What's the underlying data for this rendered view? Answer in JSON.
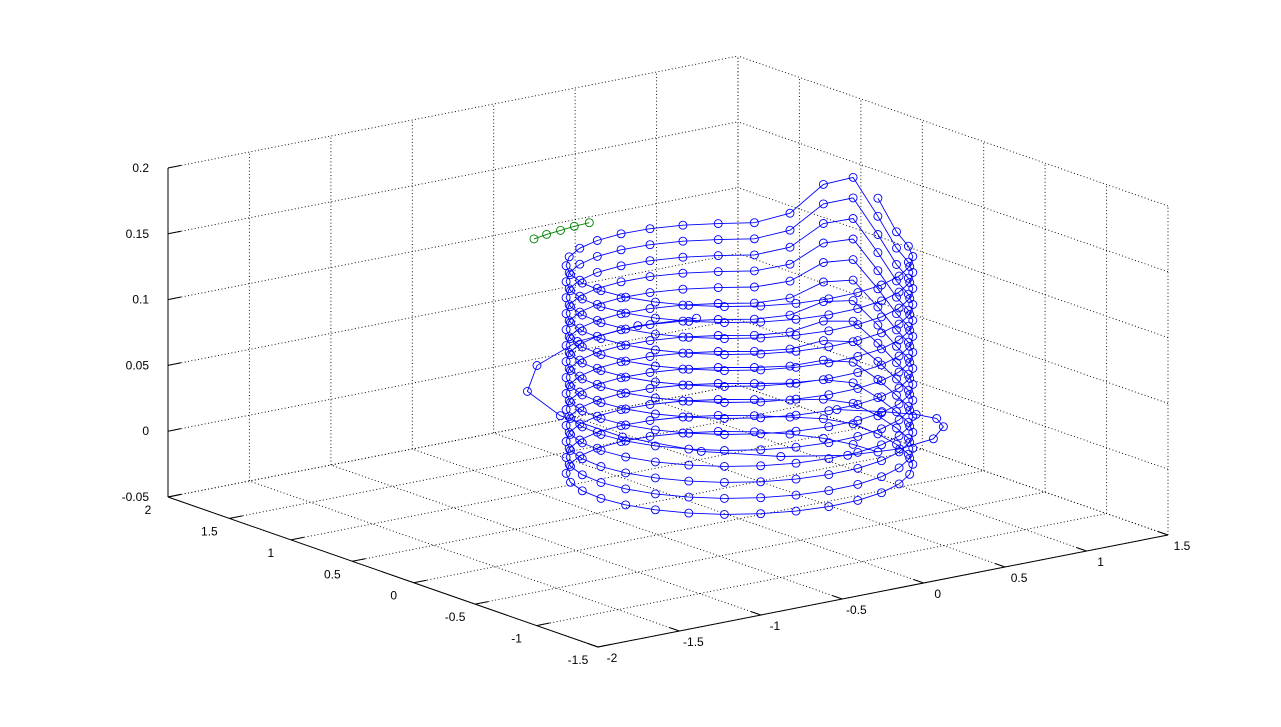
{
  "chart_data": {
    "type": "scatter",
    "title": "",
    "xlabel": "",
    "ylabel": "",
    "zlabel": "",
    "grid": true,
    "marker": "circle",
    "xlim": [
      -2,
      1.5
    ],
    "ylim": [
      -1.5,
      2
    ],
    "zlim": [
      -0.05,
      0.2
    ],
    "x_ticks": [
      "-2",
      "-1.5",
      "-1",
      "-0.5",
      "0",
      "0.5",
      "1",
      "1.5"
    ],
    "y_ticks": [
      "-1.5",
      "-1",
      "-0.5",
      "0",
      "0.5",
      "1",
      "1.5",
      "2"
    ],
    "z_ticks": [
      "-0.05",
      "0",
      "0.05",
      "0.1",
      "0.15",
      "0.2"
    ],
    "series": [
      {
        "color": "#0000ff",
        "points": [
          [
            0.87,
            0.36,
            0.0
          ],
          [
            0.95,
            0.1,
            0.005
          ],
          [
            0.98,
            -0.14,
            0.01
          ],
          [
            0.94,
            -0.36,
            0.015
          ],
          [
            0.8,
            -0.6,
            0.02
          ],
          [
            0.55,
            -0.85,
            0.025
          ],
          [
            0.23,
            -1.0,
            0.03
          ],
          [
            -0.12,
            -1.04,
            0.035
          ],
          [
            -0.47,
            -0.96,
            0.04
          ],
          [
            -0.8,
            -0.75,
            0.045
          ],
          [
            -1.02,
            -0.4,
            0.05
          ],
          [
            -1.1,
            0.0,
            0.055
          ],
          [
            -1.0,
            0.4,
            0.058
          ],
          [
            -0.7,
            0.72,
            0.06
          ],
          [
            -0.3,
            0.92,
            0.062
          ],
          [
            0.1,
            0.96,
            0.063
          ],
          [
            0.4,
            0.88,
            0.064
          ]
        ]
      },
      {
        "color": "#0000ff",
        "spiral": {
          "radius": 0.85,
          "turns": 14,
          "points_per_turn": 30,
          "z_start": -0.02,
          "z_end": 0.15,
          "peak_angle_deg": 15,
          "peak_height": 0.05
        }
      },
      {
        "color": "#008000",
        "points": [
          [
            -0.62,
            0.85,
            0.15
          ],
          [
            -0.52,
            0.88,
            0.15
          ],
          [
            -0.42,
            0.9,
            0.15
          ],
          [
            -0.32,
            0.92,
            0.15
          ],
          [
            -0.22,
            0.93,
            0.15
          ]
        ]
      }
    ]
  }
}
